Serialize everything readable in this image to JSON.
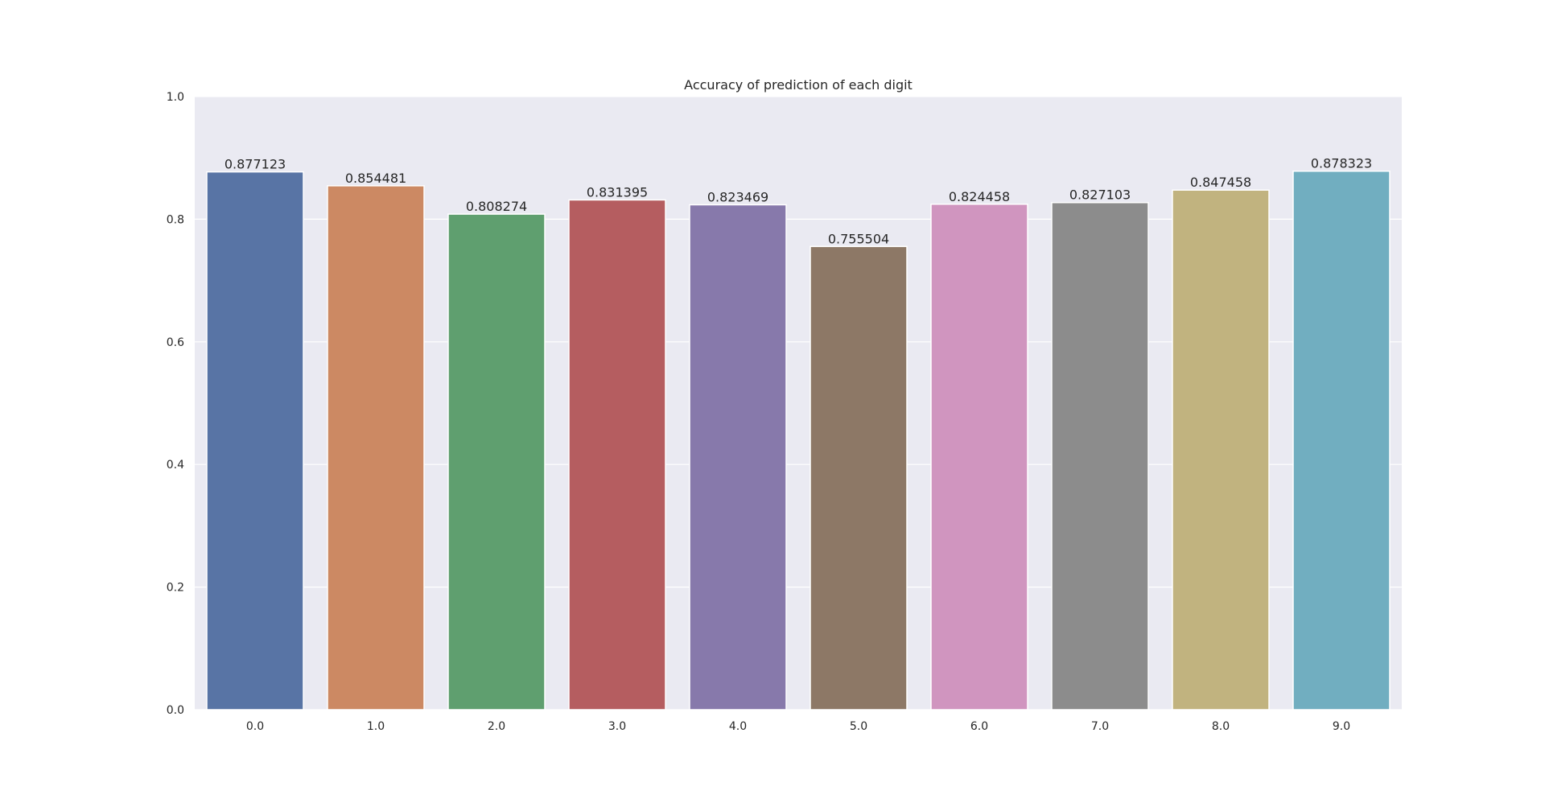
{
  "chart_data": {
    "type": "bar",
    "title": "Accuracy of prediction of each digit",
    "xlabel": "",
    "ylabel": "",
    "categories": [
      "0.0",
      "1.0",
      "2.0",
      "3.0",
      "4.0",
      "5.0",
      "6.0",
      "7.0",
      "8.0",
      "9.0"
    ],
    "values": [
      0.877123,
      0.854481,
      0.808274,
      0.831395,
      0.823469,
      0.755504,
      0.824458,
      0.827103,
      0.847458,
      0.878323
    ],
    "data_labels": [
      "0.877123",
      "0.854481",
      "0.808274",
      "0.831395",
      "0.823469",
      "0.755504",
      "0.824458",
      "0.827103",
      "0.847458",
      "0.878323"
    ],
    "colors": [
      "#5874a5",
      "#cc8963",
      "#5f9f6f",
      "#b55d60",
      "#8779ab",
      "#8d7866",
      "#d095bf",
      "#8c8c8c",
      "#c1b37f",
      "#71aec0"
    ],
    "ylim": [
      0,
      1.0
    ],
    "yticks": [
      "0.0",
      "0.2",
      "0.4",
      "0.6",
      "0.8",
      "1.0"
    ],
    "ytick_values": [
      0,
      0.2,
      0.4,
      0.6,
      0.8,
      1.0
    ],
    "grid": true,
    "background": "#eaeaf2",
    "grid_color": "#ffffff"
  }
}
